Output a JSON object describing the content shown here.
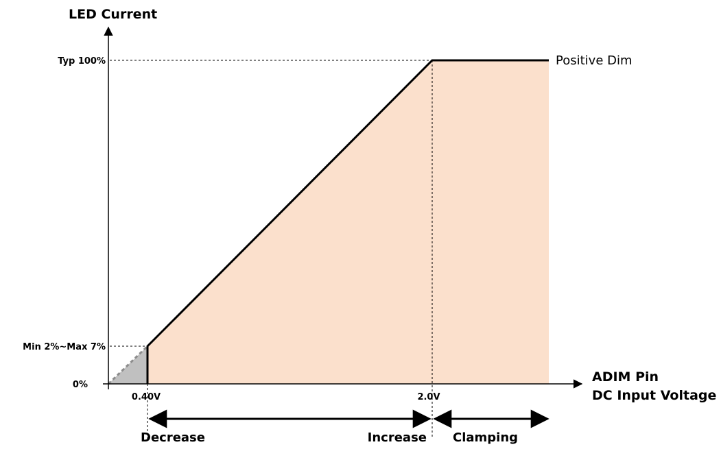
{
  "diagram": {
    "y_axis_title": "LED Current",
    "x_axis_title_line1": "ADIM Pin",
    "x_axis_title_line2": "DC Input Voltage",
    "y_ticks": {
      "top": "Typ 100%",
      "min": "Min 2%~Max 7%",
      "zero": "0%"
    },
    "x_ticks": {
      "low": "0.40V",
      "high": "2.0V"
    },
    "curve_label": "Positive Dim",
    "regions": {
      "decrease": "Decrease",
      "increase": "Increase",
      "clamping": "Clamping"
    },
    "colors": {
      "fill_active": "#fbe0cc",
      "fill_low": "#c0c0c0",
      "line": "#000000",
      "dashed_low": "#8c8c8c"
    }
  }
}
